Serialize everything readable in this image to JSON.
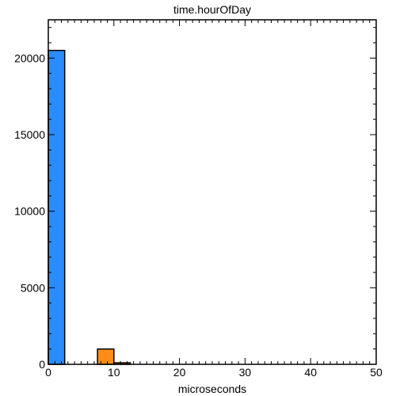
{
  "chart_data": {
    "type": "bar",
    "title": "time.hourOfDay",
    "xlabel": "microseconds",
    "ylabel": "",
    "xlim": [
      0,
      50
    ],
    "ylim": [
      0,
      22500
    ],
    "x_ticks": [
      0,
      10,
      20,
      30,
      40,
      50
    ],
    "y_ticks": [
      0,
      5000,
      10000,
      15000,
      20000
    ],
    "grid": false,
    "series": [
      {
        "color": "#2a8cff",
        "bins": [
          {
            "x0": 0,
            "x1": 2.5,
            "value": 20500
          }
        ]
      },
      {
        "color": "#ff8c1a",
        "bins": [
          {
            "x0": 7.5,
            "x1": 10,
            "value": 1000
          },
          {
            "x0": 10,
            "x1": 12.5,
            "value": 100
          }
        ]
      }
    ]
  }
}
